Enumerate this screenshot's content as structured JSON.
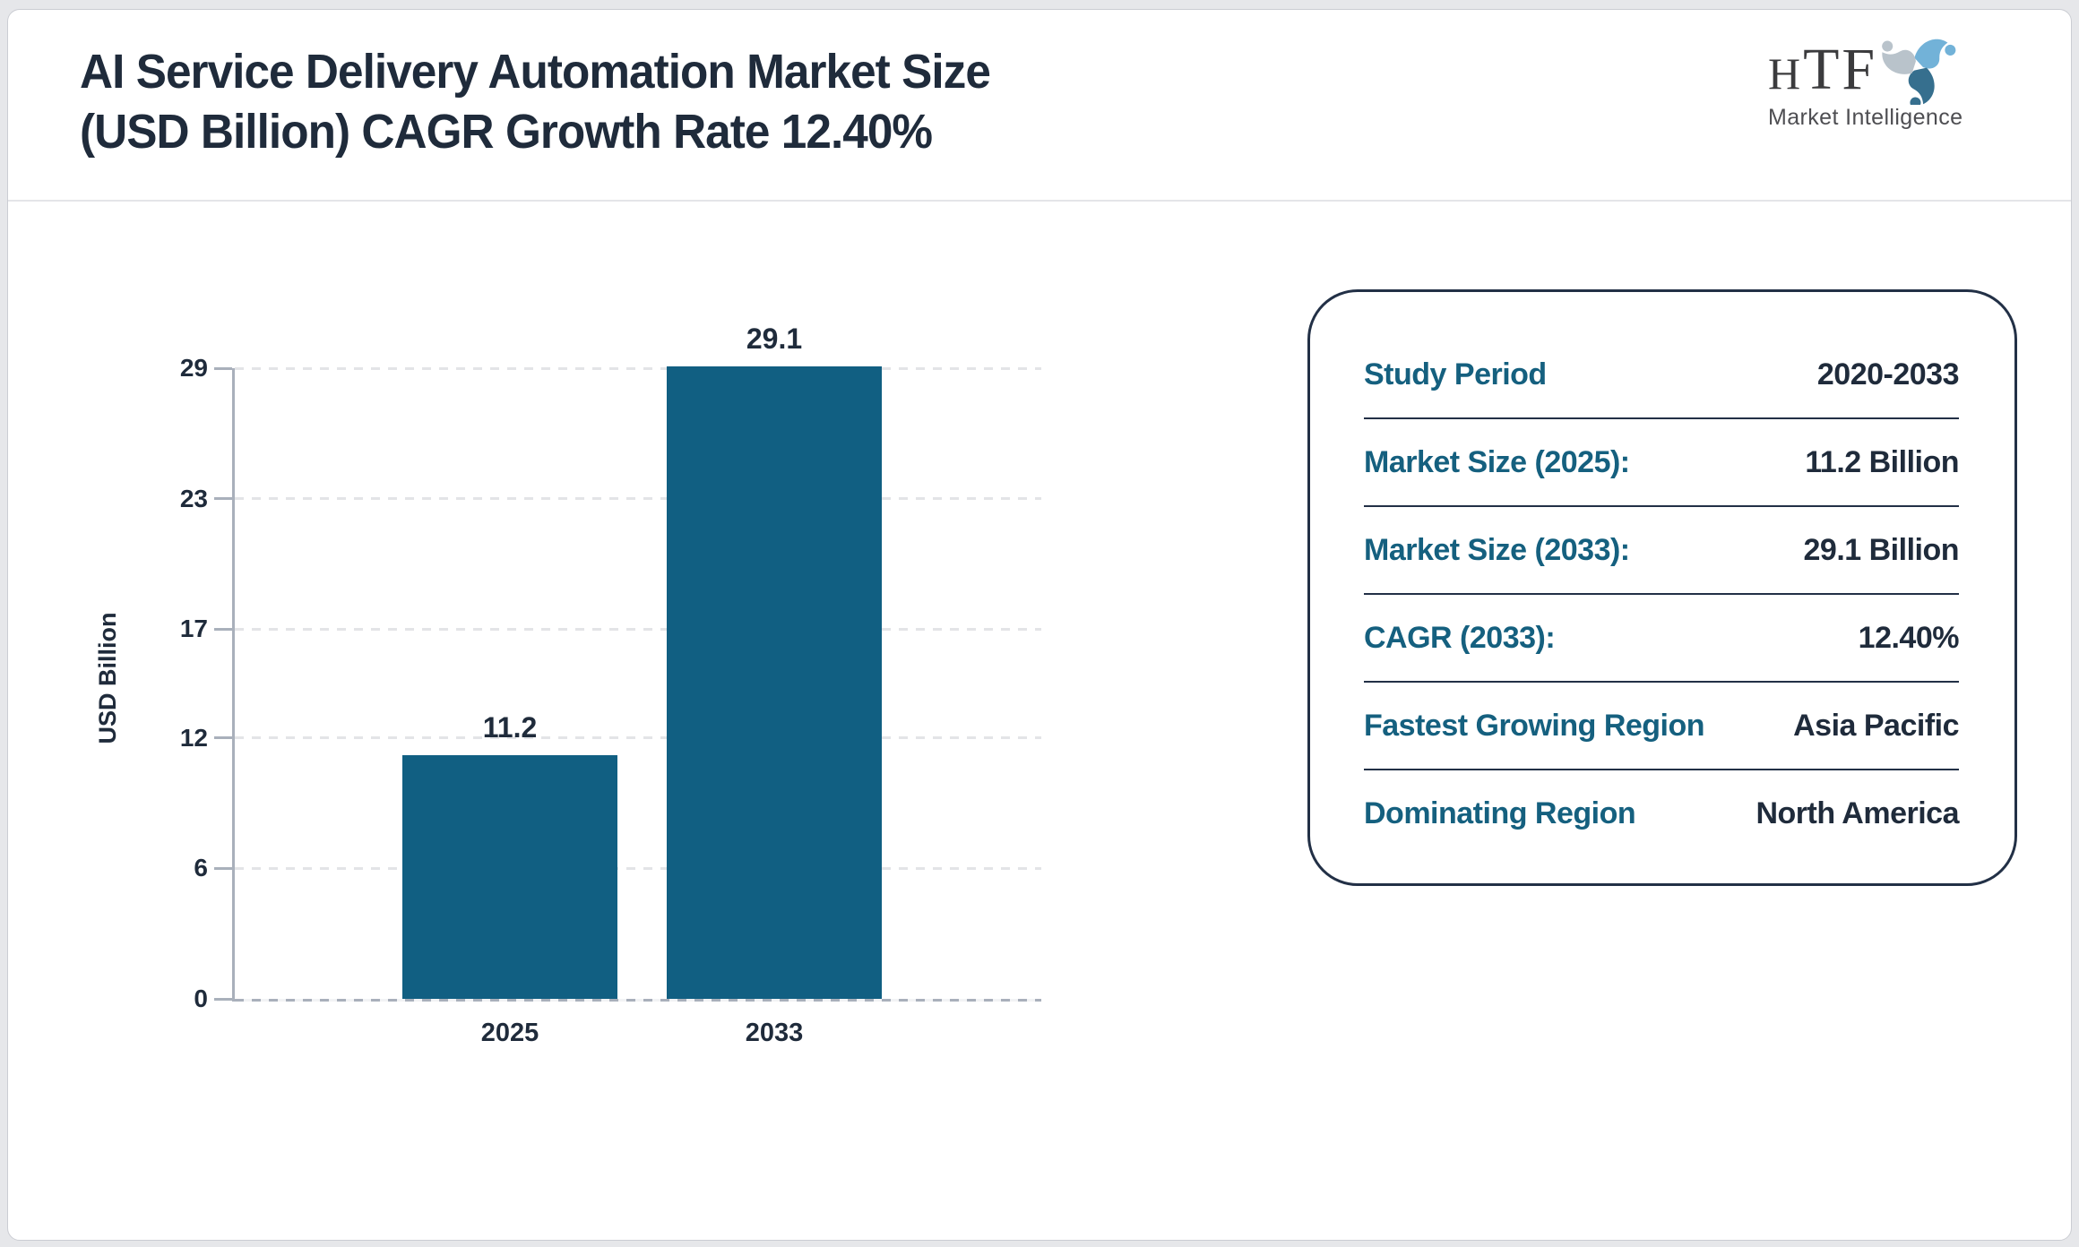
{
  "colors": {
    "page_bg": "#E6E7EA",
    "card_bg": "#FFFFFF",
    "card_border": "#CBCDD3",
    "header_divider": "#E4E5E8",
    "title_text": "#1F2B3B",
    "bar_fill": "#115F82",
    "axis_gray": "#A9B0BB",
    "gridline": "#E3E4E7",
    "panel_border": "#223046",
    "label_teal": "#15607F",
    "value_navy": "#1F2B3B",
    "logo_text": "#3B3B3D",
    "logo_subtext": "#4E4E52",
    "logo_blue_light": "#72B2D8",
    "logo_blue_dark": "#366F8E",
    "logo_gray": "#B9C3CB"
  },
  "header": {
    "title_line1": "AI Service Delivery Automation Market Size",
    "title_line2": "(USD Billion) CAGR Growth Rate 12.40%",
    "logo": {
      "text_small": "H",
      "text_large": "TF",
      "subtext": "Market Intelligence",
      "icon": "htf-swirl-logo"
    }
  },
  "chart_data": {
    "type": "bar",
    "categories": [
      "2025",
      "2033"
    ],
    "values": [
      11.2,
      29.1
    ],
    "value_labels": [
      "11.2",
      "29.1"
    ],
    "title": "",
    "xlabel": "",
    "ylabel": "USD Billion",
    "yticks": [
      0,
      6,
      12,
      17,
      23,
      29
    ],
    "ylim": [
      0,
      29
    ],
    "grid": "dashed-horizontal",
    "legend": "none",
    "bar_color": "#115F82"
  },
  "info_panel": {
    "rows": [
      {
        "label": "Study Period",
        "value": "2020-2033"
      },
      {
        "label": "Market Size (2025):",
        "value": "11.2 Billion"
      },
      {
        "label": "Market Size (2033):",
        "value": "29.1 Billion"
      },
      {
        "label": "CAGR (2033):",
        "value": "12.40%"
      },
      {
        "label": "Fastest Growing Region",
        "value": "Asia Pacific"
      },
      {
        "label": "Dominating Region",
        "value": "North America"
      }
    ]
  }
}
